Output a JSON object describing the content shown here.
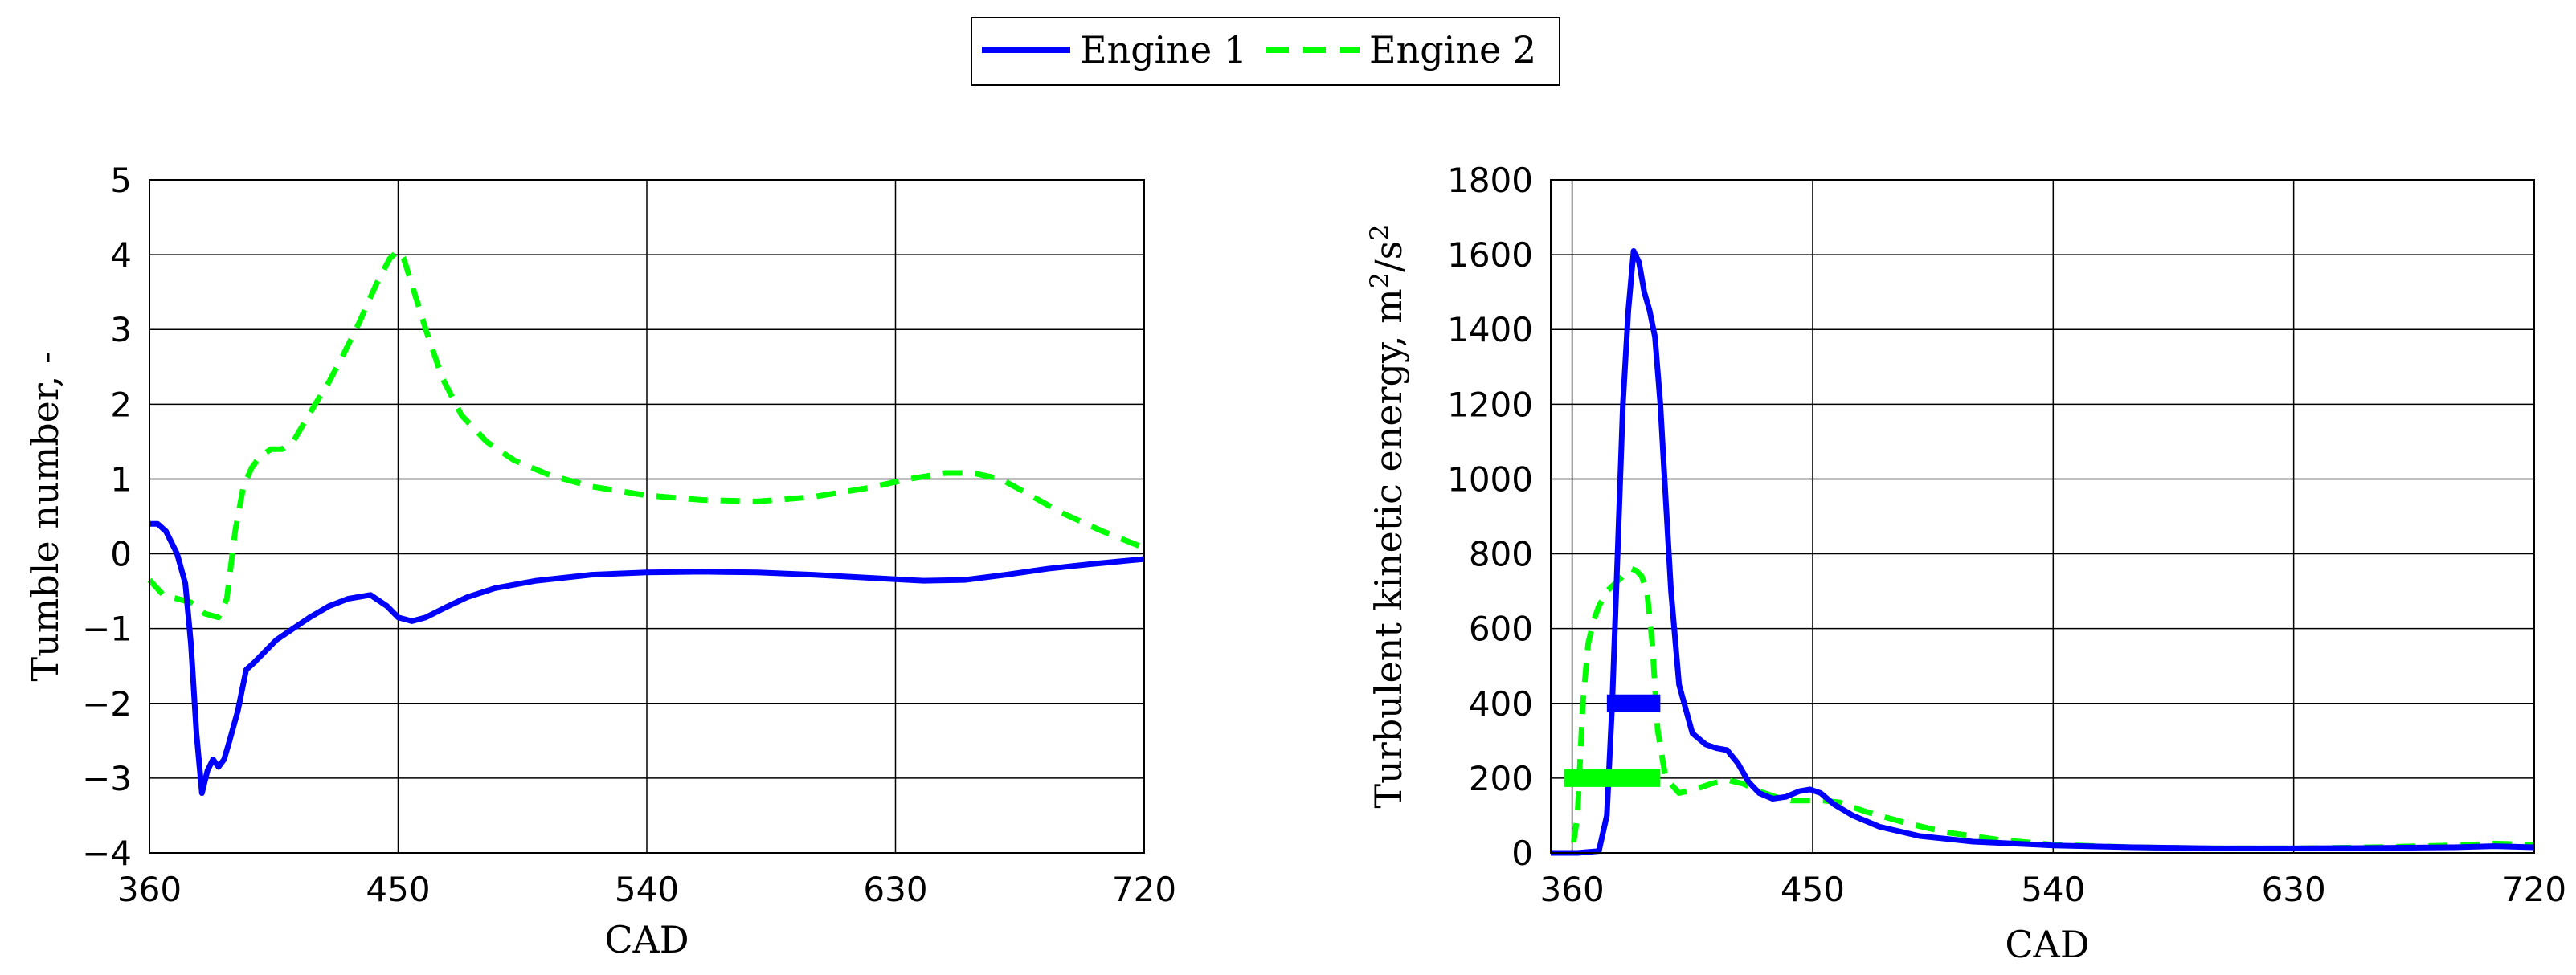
{
  "legend": {
    "entries": [
      {
        "label": "Engine 1",
        "color": "#0000ff",
        "style": "solid"
      },
      {
        "label": "Engine 2",
        "color": "#00ff00",
        "style": "dashed"
      }
    ]
  },
  "chart_data": [
    {
      "type": "line",
      "title": "",
      "xlabel": "CAD",
      "ylabel": "Tumble number, -",
      "xlim": [
        360,
        720
      ],
      "ylim": [
        -4,
        5
      ],
      "xticks": [
        360,
        450,
        540,
        630,
        720
      ],
      "yticks": [
        -4,
        -3,
        -2,
        -1,
        0,
        1,
        2,
        3,
        4,
        5
      ],
      "xtick_labels": [
        "360",
        "450",
        "540",
        "630",
        "720"
      ],
      "ytick_labels": [
        "−4",
        "−3",
        "−2",
        "−1",
        "0",
        "1",
        "2",
        "3",
        "4",
        "5"
      ],
      "grid": true,
      "series": [
        {
          "name": "Engine 1",
          "color": "#0000ff",
          "dash": "solid",
          "x": [
            360,
            363,
            366,
            370,
            373,
            375,
            377,
            379,
            381,
            383,
            385,
            387,
            389,
            392,
            395,
            398,
            402,
            406,
            412,
            418,
            425,
            432,
            440,
            446,
            450,
            455,
            460,
            467,
            475,
            485,
            500,
            520,
            540,
            560,
            580,
            600,
            620,
            640,
            655,
            670,
            685,
            700,
            720
          ],
          "y": [
            0.4,
            0.4,
            0.3,
            0.0,
            -0.4,
            -1.2,
            -2.4,
            -3.2,
            -2.9,
            -2.75,
            -2.85,
            -2.75,
            -2.5,
            -2.1,
            -1.55,
            -1.45,
            -1.3,
            -1.15,
            -1.0,
            -0.85,
            -0.7,
            -0.6,
            -0.55,
            -0.7,
            -0.85,
            -0.9,
            -0.85,
            -0.72,
            -0.58,
            -0.46,
            -0.36,
            -0.28,
            -0.25,
            -0.24,
            -0.25,
            -0.28,
            -0.32,
            -0.36,
            -0.35,
            -0.28,
            -0.2,
            -0.14,
            -0.07
          ]
        },
        {
          "name": "Engine 2",
          "color": "#00ff00",
          "dash": "dashed",
          "x": [
            360,
            365,
            370,
            375,
            380,
            385,
            388,
            391,
            394,
            397,
            400,
            404,
            408,
            412,
            416,
            420,
            425,
            430,
            436,
            442,
            447,
            450,
            452,
            455,
            460,
            466,
            473,
            482,
            492,
            505,
            520,
            540,
            560,
            580,
            600,
            620,
            635,
            648,
            658,
            668,
            678,
            690,
            705,
            720
          ],
          "y": [
            -0.35,
            -0.55,
            -0.6,
            -0.65,
            -0.8,
            -0.85,
            -0.6,
            0.3,
            0.9,
            1.15,
            1.3,
            1.4,
            1.4,
            1.5,
            1.75,
            2.0,
            2.3,
            2.65,
            3.1,
            3.6,
            3.95,
            4.05,
            3.95,
            3.6,
            3.0,
            2.35,
            1.85,
            1.5,
            1.25,
            1.05,
            0.9,
            0.78,
            0.72,
            0.7,
            0.76,
            0.88,
            1.0,
            1.08,
            1.08,
            1.0,
            0.8,
            0.55,
            0.3,
            0.08
          ]
        }
      ]
    },
    {
      "type": "line",
      "title": "",
      "xlabel": "CAD",
      "ylabel": "Turbulent kinetic energy, m²/s²",
      "ylabel_main": "Turbulent kinetic energy, m",
      "ylabel_sup1": "2",
      "ylabel_mid": "/s",
      "ylabel_sup2": "2",
      "xlim": [
        352,
        720
      ],
      "ylim": [
        0,
        1800
      ],
      "xticks": [
        360,
        450,
        540,
        630,
        720
      ],
      "yticks": [
        0,
        200,
        400,
        600,
        800,
        1000,
        1200,
        1400,
        1600,
        1800
      ],
      "xtick_labels": [
        "360",
        "450",
        "540",
        "630",
        "720"
      ],
      "ytick_labels": [
        "0",
        "200",
        "400",
        "600",
        "800",
        "1000",
        "1200",
        "1400",
        "1600",
        "1800"
      ],
      "grid": true,
      "series": [
        {
          "name": "Engine 1",
          "color": "#0000ff",
          "dash": "solid",
          "x": [
            352,
            362,
            370,
            373,
            375,
            377,
            379,
            381,
            383,
            385,
            387,
            389,
            391,
            393,
            395,
            397,
            400,
            405,
            410,
            414,
            418,
            422,
            426,
            430,
            435,
            440,
            445,
            449,
            453,
            458,
            465,
            475,
            490,
            510,
            540,
            570,
            600,
            630,
            660,
            690,
            705,
            720
          ],
          "y": [
            0,
            0,
            5,
            100,
            400,
            800,
            1200,
            1450,
            1610,
            1580,
            1500,
            1450,
            1380,
            1200,
            950,
            700,
            450,
            320,
            290,
            280,
            275,
            240,
            190,
            160,
            145,
            150,
            165,
            170,
            160,
            130,
            100,
            70,
            45,
            30,
            20,
            15,
            12,
            12,
            13,
            15,
            18,
            15
          ]
        },
        {
          "name": "Engine 2",
          "color": "#00ff00",
          "dash": "dashed",
          "x": [
            352,
            360,
            362,
            364,
            366,
            368,
            370,
            373,
            376,
            379,
            382,
            384,
            386,
            388,
            390,
            392,
            395,
            400,
            406,
            412,
            418,
            424,
            430,
            436,
            442,
            448,
            454,
            460,
            470,
            485,
            500,
            520,
            540,
            570,
            600,
            630,
            660,
            690,
            705,
            720
          ],
          "y": [
            0,
            0,
            100,
            400,
            560,
            620,
            660,
            700,
            720,
            740,
            760,
            755,
            740,
            700,
            560,
            330,
            200,
            160,
            170,
            185,
            195,
            185,
            165,
            150,
            140,
            140,
            140,
            135,
            110,
            80,
            55,
            35,
            22,
            15,
            12,
            12,
            15,
            20,
            25,
            22
          ]
        }
      ],
      "bars": [
        {
          "series": "Engine 1",
          "color": "#0000ff",
          "x_start": 373,
          "x_end": 393,
          "y": 400
        },
        {
          "series": "Engine 2",
          "color": "#00ff00",
          "x_start": 357,
          "x_end": 393,
          "y": 200
        }
      ]
    }
  ]
}
